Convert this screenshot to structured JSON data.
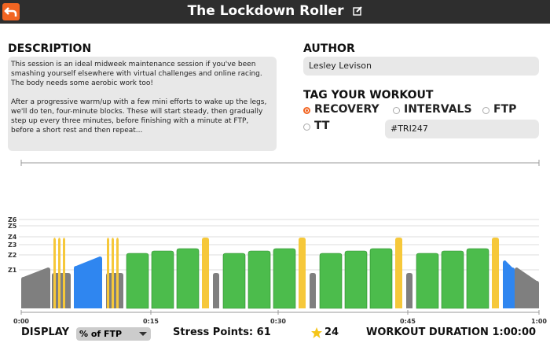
{
  "header": {
    "title": "The Lockdown Roller"
  },
  "description": {
    "label": "DESCRIPTION",
    "paragraphs": [
      "This session is an ideal midweek maintenance session if you've been smashing yourself elsewhere with virtual challenges and online racing. The body needs some aerobic work too!",
      "After a progressive warm/up with a few mini efforts to wake up the legs, we'll do ten, four-minute blocks. These will start steady, then gradually step up every three minutes, before finishing with a minute at FTP, before a short rest and then repeat..."
    ]
  },
  "author": {
    "label": "AUTHOR",
    "value": "Lesley Levison"
  },
  "tags": {
    "label": "TAG YOUR WORKOUT",
    "options": [
      "RECOVERY",
      "INTERVALS",
      "FTP",
      "TT"
    ],
    "selected_option": 0,
    "hashtag": "#TRI247"
  },
  "profile": {
    "zones": [
      "Z6",
      "Z5",
      "Z4",
      "Z3",
      "Z2",
      "Z1"
    ],
    "time_ticks": [
      "0:00",
      "0:15",
      "0:30",
      "0:45",
      "1:00"
    ]
  },
  "footer": {
    "display_label": "DISPLAY",
    "display_value": "% of FTP",
    "stress_label": "Stress Points:",
    "stress_value": 61,
    "stars": 24,
    "duration_label": "WORKOUT DURATION",
    "duration": "1:00:00"
  }
}
